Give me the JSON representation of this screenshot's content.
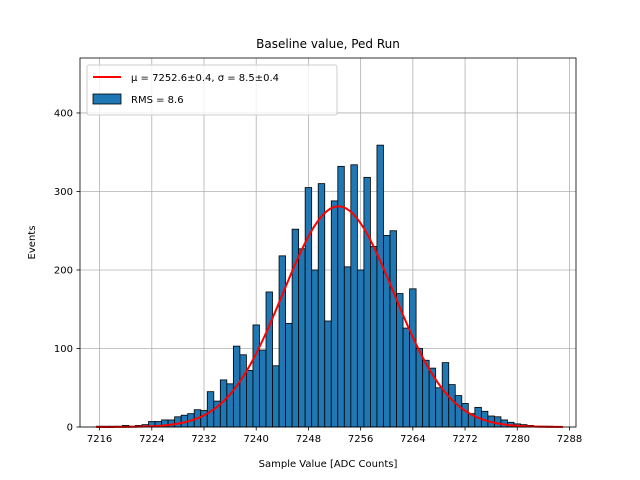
{
  "chart_data": {
    "type": "bar",
    "title": "Baseline value, Ped Run",
    "xlabel": "Sample Value [ADC Counts]",
    "ylabel": "Events",
    "xlim": [
      7213,
      7289
    ],
    "ylim": [
      0,
      470
    ],
    "xticks": [
      7216,
      7224,
      7232,
      7240,
      7248,
      7256,
      7264,
      7272,
      7280,
      7288
    ],
    "yticks": [
      0,
      100,
      200,
      300,
      400
    ],
    "grid": true,
    "legend": {
      "placement": "top-left",
      "fit_label": "μ = 7252.6±0.4, σ = 8.5±0.4",
      "hist_label": "RMS = 8.6"
    },
    "colors": {
      "bars": "#1f77b4",
      "edge": "#000000",
      "fit": "#ff0000",
      "grid": "#b0b0b0"
    },
    "histogram": {
      "bin_width": 1,
      "bins": [
        {
          "x": 7216,
          "count": 1
        },
        {
          "x": 7217,
          "count": 1
        },
        {
          "x": 7218,
          "count": 1
        },
        {
          "x": 7219,
          "count": 1
        },
        {
          "x": 7220,
          "count": 2
        },
        {
          "x": 7221,
          "count": 1
        },
        {
          "x": 7222,
          "count": 2
        },
        {
          "x": 7223,
          "count": 3
        },
        {
          "x": 7224,
          "count": 7
        },
        {
          "x": 7225,
          "count": 7
        },
        {
          "x": 7226,
          "count": 9
        },
        {
          "x": 7227,
          "count": 9
        },
        {
          "x": 7228,
          "count": 13
        },
        {
          "x": 7229,
          "count": 15
        },
        {
          "x": 7230,
          "count": 17
        },
        {
          "x": 7231,
          "count": 22
        },
        {
          "x": 7232,
          "count": 21
        },
        {
          "x": 7233,
          "count": 45
        },
        {
          "x": 7234,
          "count": 33
        },
        {
          "x": 7235,
          "count": 60
        },
        {
          "x": 7236,
          "count": 55
        },
        {
          "x": 7237,
          "count": 103
        },
        {
          "x": 7238,
          "count": 92
        },
        {
          "x": 7239,
          "count": 72
        },
        {
          "x": 7240,
          "count": 130
        },
        {
          "x": 7241,
          "count": 98
        },
        {
          "x": 7242,
          "count": 172
        },
        {
          "x": 7243,
          "count": 78
        },
        {
          "x": 7244,
          "count": 218
        },
        {
          "x": 7245,
          "count": 132
        },
        {
          "x": 7246,
          "count": 252
        },
        {
          "x": 7247,
          "count": 227
        },
        {
          "x": 7248,
          "count": 305
        },
        {
          "x": 7249,
          "count": 200
        },
        {
          "x": 7250,
          "count": 310
        },
        {
          "x": 7251,
          "count": 135
        },
        {
          "x": 7252,
          "count": 288
        },
        {
          "x": 7253,
          "count": 332
        },
        {
          "x": 7254,
          "count": 204
        },
        {
          "x": 7255,
          "count": 334
        },
        {
          "x": 7256,
          "count": 200
        },
        {
          "x": 7257,
          "count": 318
        },
        {
          "x": 7258,
          "count": 230
        },
        {
          "x": 7259,
          "count": 359
        },
        {
          "x": 7260,
          "count": 244
        },
        {
          "x": 7261,
          "count": 250
        },
        {
          "x": 7262,
          "count": 170
        },
        {
          "x": 7263,
          "count": 126
        },
        {
          "x": 7264,
          "count": 176
        },
        {
          "x": 7265,
          "count": 100
        },
        {
          "x": 7266,
          "count": 85
        },
        {
          "x": 7267,
          "count": 75
        },
        {
          "x": 7268,
          "count": 50
        },
        {
          "x": 7269,
          "count": 82
        },
        {
          "x": 7270,
          "count": 54
        },
        {
          "x": 7271,
          "count": 40
        },
        {
          "x": 7272,
          "count": 30
        },
        {
          "x": 7273,
          "count": 17
        },
        {
          "x": 7274,
          "count": 25
        },
        {
          "x": 7275,
          "count": 20
        },
        {
          "x": 7276,
          "count": 14
        },
        {
          "x": 7277,
          "count": 13
        },
        {
          "x": 7278,
          "count": 9
        },
        {
          "x": 7279,
          "count": 6
        },
        {
          "x": 7280,
          "count": 4
        },
        {
          "x": 7281,
          "count": 3
        },
        {
          "x": 7282,
          "count": 2
        },
        {
          "x": 7283,
          "count": 1
        },
        {
          "x": 7284,
          "count": 1
        },
        {
          "x": 7285,
          "count": 1
        }
      ]
    },
    "fit": {
      "type": "gaussian",
      "mu": 7252.6,
      "sigma": 8.5,
      "amplitude": 281,
      "x_range": [
        7215.5,
        7287
      ]
    }
  }
}
